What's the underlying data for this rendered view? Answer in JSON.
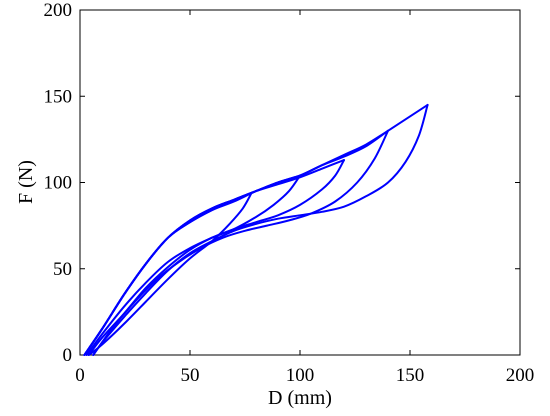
{
  "chart_data": {
    "type": "line",
    "title": "",
    "xlabel": "D (mm)",
    "ylabel": "F (N)",
    "xlim": [
      0,
      200
    ],
    "ylim": [
      0,
      200
    ],
    "xticks": [
      0,
      50,
      100,
      150,
      200
    ],
    "yticks": [
      0,
      50,
      100,
      150,
      200
    ],
    "grid": false,
    "color": "#0000ff",
    "series": [
      {
        "loading": [
          [
            2,
            0
          ],
          [
            10,
            15
          ],
          [
            20,
            35
          ],
          [
            30,
            53
          ],
          [
            40,
            68
          ],
          [
            50,
            77
          ],
          [
            60,
            84
          ],
          [
            70,
            90
          ],
          [
            78,
            94
          ]
        ],
        "unloading": [
          [
            78,
            94
          ],
          [
            74,
            85
          ],
          [
            68,
            76
          ],
          [
            60,
            66
          ],
          [
            50,
            56
          ],
          [
            40,
            44
          ],
          [
            30,
            31
          ],
          [
            20,
            18
          ],
          [
            10,
            6
          ],
          [
            4,
            0
          ]
        ]
      },
      {
        "loading": [
          [
            2,
            0
          ],
          [
            10,
            15
          ],
          [
            20,
            35
          ],
          [
            30,
            53
          ],
          [
            40,
            68
          ],
          [
            50,
            77
          ],
          [
            60,
            84
          ],
          [
            70,
            89
          ],
          [
            80,
            95
          ],
          [
            90,
            100
          ],
          [
            100,
            104
          ]
        ],
        "unloading": [
          [
            100,
            104
          ],
          [
            95,
            95
          ],
          [
            88,
            87
          ],
          [
            80,
            80
          ],
          [
            70,
            73
          ],
          [
            60,
            68
          ],
          [
            50,
            62
          ],
          [
            40,
            54
          ],
          [
            30,
            42
          ],
          [
            20,
            28
          ],
          [
            10,
            12
          ],
          [
            3,
            0
          ]
        ]
      },
      {
        "loading": [
          [
            2,
            0
          ],
          [
            10,
            15
          ],
          [
            20,
            35
          ],
          [
            30,
            53
          ],
          [
            40,
            68
          ],
          [
            50,
            78
          ],
          [
            60,
            85
          ],
          [
            70,
            90
          ],
          [
            80,
            95
          ],
          [
            90,
            99
          ],
          [
            100,
            103
          ],
          [
            110,
            108
          ],
          [
            120,
            113
          ]
        ],
        "unloading": [
          [
            120,
            113
          ],
          [
            116,
            104
          ],
          [
            110,
            96
          ],
          [
            100,
            87
          ],
          [
            90,
            81
          ],
          [
            80,
            77
          ],
          [
            70,
            73
          ],
          [
            60,
            68
          ],
          [
            50,
            61
          ],
          [
            40,
            51
          ],
          [
            30,
            39
          ],
          [
            20,
            24
          ],
          [
            10,
            10
          ],
          [
            4,
            0
          ]
        ]
      },
      {
        "loading": [
          [
            2,
            0
          ],
          [
            10,
            15
          ],
          [
            20,
            35
          ],
          [
            30,
            53
          ],
          [
            40,
            68
          ],
          [
            50,
            78
          ],
          [
            60,
            85
          ],
          [
            70,
            90
          ],
          [
            80,
            95
          ],
          [
            90,
            100
          ],
          [
            100,
            104
          ],
          [
            110,
            110
          ],
          [
            120,
            115
          ],
          [
            130,
            121
          ],
          [
            140,
            130
          ]
        ],
        "unloading": [
          [
            140,
            130
          ],
          [
            134,
            114
          ],
          [
            126,
            100
          ],
          [
            116,
            89
          ],
          [
            105,
            82
          ],
          [
            95,
            78
          ],
          [
            85,
            75
          ],
          [
            75,
            72
          ],
          [
            65,
            68
          ],
          [
            55,
            62
          ],
          [
            45,
            54
          ],
          [
            35,
            44
          ],
          [
            25,
            31
          ],
          [
            15,
            16
          ],
          [
            6,
            0
          ]
        ]
      },
      {
        "loading": [
          [
            2,
            0
          ],
          [
            10,
            15
          ],
          [
            20,
            35
          ],
          [
            30,
            53
          ],
          [
            40,
            68
          ],
          [
            50,
            78
          ],
          [
            60,
            85
          ],
          [
            70,
            90
          ],
          [
            80,
            95
          ],
          [
            90,
            100
          ],
          [
            100,
            104
          ],
          [
            110,
            110
          ],
          [
            120,
            116
          ],
          [
            130,
            122
          ],
          [
            140,
            130
          ],
          [
            158,
            145
          ]
        ],
        "unloading": [
          [
            158,
            145
          ],
          [
            154,
            127
          ],
          [
            148,
            112
          ],
          [
            140,
            100
          ],
          [
            130,
            92
          ],
          [
            120,
            86
          ],
          [
            110,
            83
          ],
          [
            100,
            81
          ],
          [
            90,
            79
          ],
          [
            80,
            76
          ],
          [
            70,
            72
          ],
          [
            60,
            66
          ],
          [
            50,
            59
          ],
          [
            40,
            49
          ],
          [
            30,
            36
          ],
          [
            20,
            22
          ],
          [
            10,
            7
          ],
          [
            6,
            0
          ]
        ]
      }
    ]
  }
}
